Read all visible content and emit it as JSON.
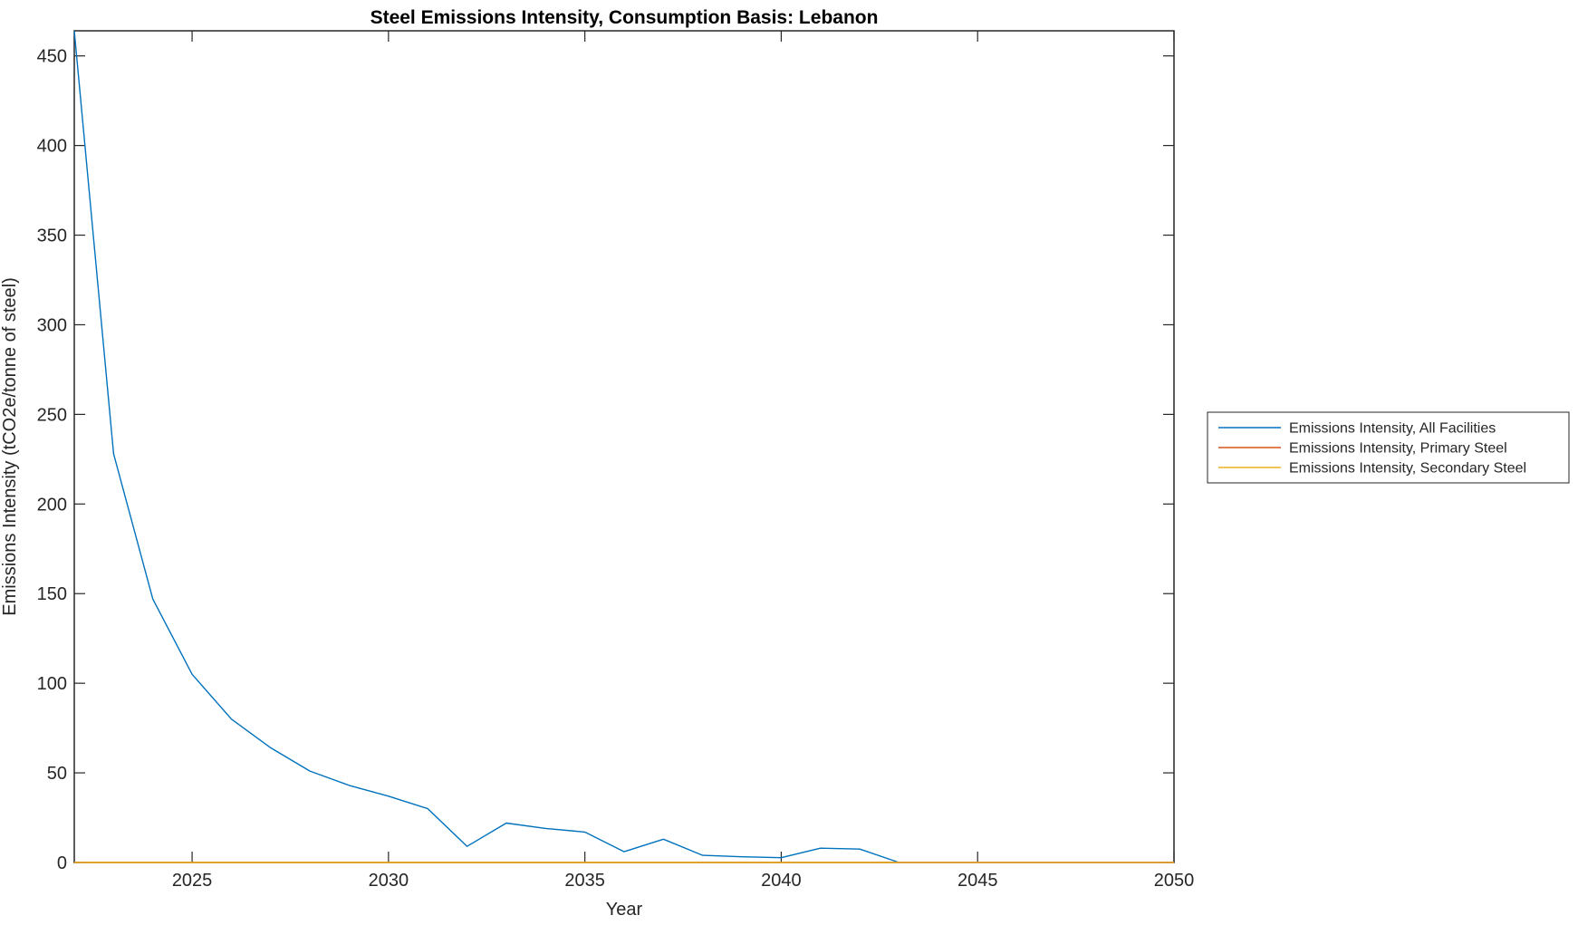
{
  "chart_data": {
    "type": "line",
    "title": "Steel Emissions Intensity, Consumption Basis: Lebanon",
    "xlabel": "Year",
    "ylabel": "Emissions Intensity (tCO2e/tonne of steel)",
    "xlim": [
      2022,
      2050
    ],
    "ylim": [
      0,
      464
    ],
    "xticks": [
      2025,
      2030,
      2035,
      2040,
      2045,
      2050
    ],
    "yticks": [
      0,
      50,
      100,
      150,
      200,
      250,
      300,
      350,
      400,
      450
    ],
    "grid": false,
    "legend_position": "outside-right",
    "axis_color": "#262626",
    "x": [
      2022,
      2023,
      2024,
      2025,
      2026,
      2027,
      2028,
      2029,
      2030,
      2031,
      2032,
      2033,
      2034,
      2035,
      2036,
      2037,
      2038,
      2039,
      2040,
      2041,
      2042,
      2043,
      2044,
      2045,
      2046,
      2047,
      2048,
      2049,
      2050
    ],
    "series": [
      {
        "name": "Emissions Intensity, All Facilities",
        "color": "#0072BD",
        "values": [
          464,
          228,
          147,
          105,
          80,
          64,
          51,
          43,
          37,
          30,
          9,
          22,
          19,
          17,
          6,
          13,
          4,
          3.2,
          2.7,
          8,
          7.5,
          0,
          0,
          0,
          0,
          0,
          0,
          0,
          0
        ]
      },
      {
        "name": "Emissions Intensity, Primary Steel",
        "color": "#D95319",
        "values": [
          0,
          0,
          0,
          0,
          0,
          0,
          0,
          0,
          0,
          0,
          0,
          0,
          0,
          0,
          0,
          0,
          0,
          0,
          0,
          0,
          0,
          0,
          0,
          0,
          0,
          0,
          0,
          0,
          0
        ]
      },
      {
        "name": "Emissions Intensity, Secondary Steel",
        "color": "#EDB120",
        "values": [
          0,
          0,
          0,
          0,
          0,
          0,
          0,
          0,
          0,
          0,
          0,
          0,
          0,
          0,
          0,
          0,
          0,
          0,
          0,
          0,
          0,
          0,
          0,
          0,
          0,
          0,
          0,
          0,
          0
        ]
      }
    ]
  }
}
